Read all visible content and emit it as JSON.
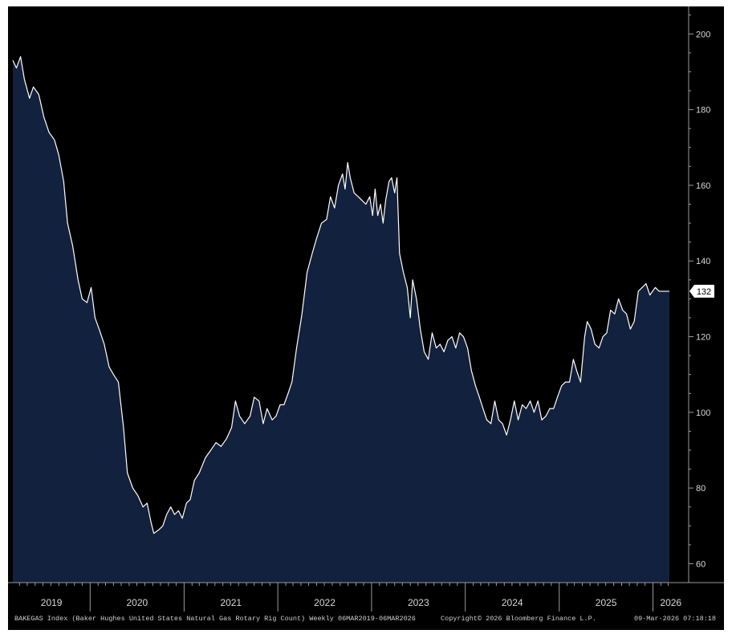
{
  "chart_data": {
    "type": "area",
    "x_range": [
      "2019-03-06",
      "2026-03-06"
    ],
    "ylim": [
      55,
      206
    ],
    "yticks": [
      60,
      80,
      100,
      120,
      140,
      160,
      180,
      200
    ],
    "year_labels": [
      "2019",
      "2020",
      "2021",
      "2022",
      "2023",
      "2024",
      "2025",
      "2026"
    ],
    "last_value": "132",
    "colors": {
      "fill": "#12213d",
      "line": "#ffffff",
      "background": "#000000",
      "last_tag": "#ffffff"
    },
    "series": [
      {
        "points": [
          [
            "2019-03-06",
            193
          ],
          [
            "2019-03-20",
            191
          ],
          [
            "2019-04-05",
            194
          ],
          [
            "2019-04-20",
            188
          ],
          [
            "2019-05-10",
            183
          ],
          [
            "2019-05-25",
            186
          ],
          [
            "2019-06-15",
            184
          ],
          [
            "2019-07-05",
            178
          ],
          [
            "2019-07-25",
            174
          ],
          [
            "2019-08-15",
            172
          ],
          [
            "2019-09-01",
            168
          ],
          [
            "2019-09-20",
            161
          ],
          [
            "2019-10-05",
            150
          ],
          [
            "2019-10-25",
            144
          ],
          [
            "2019-11-15",
            135
          ],
          [
            "2019-12-01",
            130
          ],
          [
            "2019-12-20",
            129
          ],
          [
            "2020-01-05",
            133
          ],
          [
            "2020-01-20",
            125
          ],
          [
            "2020-02-05",
            122
          ],
          [
            "2020-02-25",
            118
          ],
          [
            "2020-03-15",
            112
          ],
          [
            "2020-04-01",
            110
          ],
          [
            "2020-04-20",
            108
          ],
          [
            "2020-05-10",
            96
          ],
          [
            "2020-05-25",
            84
          ],
          [
            "2020-06-15",
            80
          ],
          [
            "2020-07-05",
            78
          ],
          [
            "2020-07-25",
            75
          ],
          [
            "2020-08-10",
            76
          ],
          [
            "2020-08-25",
            71
          ],
          [
            "2020-09-05",
            68
          ],
          [
            "2020-09-25",
            69
          ],
          [
            "2020-10-10",
            70
          ],
          [
            "2020-10-25",
            73
          ],
          [
            "2020-11-10",
            75
          ],
          [
            "2020-11-25",
            73
          ],
          [
            "2020-12-10",
            74
          ],
          [
            "2020-12-25",
            72
          ],
          [
            "2021-01-10",
            76
          ],
          [
            "2021-01-25",
            77
          ],
          [
            "2021-02-10",
            82
          ],
          [
            "2021-03-01",
            84
          ],
          [
            "2021-03-25",
            88
          ],
          [
            "2021-04-15",
            90
          ],
          [
            "2021-05-05",
            92
          ],
          [
            "2021-05-25",
            91
          ],
          [
            "2021-06-15",
            93
          ],
          [
            "2021-07-05",
            96
          ],
          [
            "2021-07-20",
            103
          ],
          [
            "2021-08-05",
            99
          ],
          [
            "2021-08-25",
            97
          ],
          [
            "2021-09-15",
            99
          ],
          [
            "2021-10-01",
            104
          ],
          [
            "2021-10-20",
            103
          ],
          [
            "2021-11-05",
            97
          ],
          [
            "2021-11-20",
            101
          ],
          [
            "2021-12-10",
            98
          ],
          [
            "2021-12-25",
            99
          ],
          [
            "2022-01-10",
            102
          ],
          [
            "2022-01-25",
            102
          ],
          [
            "2022-02-10",
            105
          ],
          [
            "2022-02-25",
            108
          ],
          [
            "2022-03-15",
            117
          ],
          [
            "2022-04-05",
            126
          ],
          [
            "2022-04-25",
            137
          ],
          [
            "2022-05-15",
            142
          ],
          [
            "2022-06-01",
            146
          ],
          [
            "2022-06-20",
            150
          ],
          [
            "2022-07-10",
            151
          ],
          [
            "2022-07-25",
            157
          ],
          [
            "2022-08-10",
            154
          ],
          [
            "2022-08-25",
            160
          ],
          [
            "2022-09-10",
            163
          ],
          [
            "2022-09-20",
            159
          ],
          [
            "2022-09-30",
            166
          ],
          [
            "2022-10-10",
            162
          ],
          [
            "2022-10-25",
            158
          ],
          [
            "2022-11-10",
            157
          ],
          [
            "2022-11-25",
            156
          ],
          [
            "2022-12-10",
            155
          ],
          [
            "2022-12-25",
            157
          ],
          [
            "2023-01-05",
            152
          ],
          [
            "2023-01-15",
            159
          ],
          [
            "2023-01-25",
            152
          ],
          [
            "2023-02-05",
            155
          ],
          [
            "2023-02-15",
            150
          ],
          [
            "2023-02-25",
            156
          ],
          [
            "2023-03-10",
            161
          ],
          [
            "2023-03-20",
            162
          ],
          [
            "2023-04-01",
            158
          ],
          [
            "2023-04-10",
            162
          ],
          [
            "2023-04-20",
            142
          ],
          [
            "2023-05-05",
            137
          ],
          [
            "2023-05-20",
            133
          ],
          [
            "2023-06-01",
            125
          ],
          [
            "2023-06-10",
            135
          ],
          [
            "2023-06-25",
            130
          ],
          [
            "2023-07-10",
            122
          ],
          [
            "2023-07-25",
            116
          ],
          [
            "2023-08-10",
            114
          ],
          [
            "2023-08-25",
            121
          ],
          [
            "2023-09-10",
            117
          ],
          [
            "2023-09-25",
            118
          ],
          [
            "2023-10-10",
            116
          ],
          [
            "2023-10-25",
            119
          ],
          [
            "2023-11-10",
            120
          ],
          [
            "2023-11-25",
            117
          ],
          [
            "2023-12-10",
            121
          ],
          [
            "2023-12-25",
            120
          ],
          [
            "2024-01-10",
            117
          ],
          [
            "2024-01-25",
            111
          ],
          [
            "2024-02-10",
            107
          ],
          [
            "2024-02-25",
            104
          ],
          [
            "2024-03-10",
            101
          ],
          [
            "2024-03-25",
            98
          ],
          [
            "2024-04-10",
            97
          ],
          [
            "2024-04-25",
            103
          ],
          [
            "2024-05-10",
            98
          ],
          [
            "2024-05-25",
            97
          ],
          [
            "2024-06-10",
            94
          ],
          [
            "2024-06-25",
            98
          ],
          [
            "2024-07-10",
            103
          ],
          [
            "2024-07-25",
            98
          ],
          [
            "2024-08-10",
            102
          ],
          [
            "2024-08-25",
            101
          ],
          [
            "2024-09-10",
            103
          ],
          [
            "2024-09-25",
            100
          ],
          [
            "2024-10-10",
            103
          ],
          [
            "2024-10-25",
            98
          ],
          [
            "2024-11-10",
            99
          ],
          [
            "2024-11-25",
            101
          ],
          [
            "2024-12-10",
            101
          ],
          [
            "2024-12-25",
            104
          ],
          [
            "2025-01-10",
            107
          ],
          [
            "2025-01-25",
            108
          ],
          [
            "2025-02-10",
            108
          ],
          [
            "2025-02-25",
            114
          ],
          [
            "2025-03-10",
            111
          ],
          [
            "2025-03-25",
            108
          ],
          [
            "2025-04-10",
            120
          ],
          [
            "2025-04-20",
            124
          ],
          [
            "2025-05-05",
            122
          ],
          [
            "2025-05-20",
            118
          ],
          [
            "2025-06-05",
            117
          ],
          [
            "2025-06-20",
            120
          ],
          [
            "2025-07-05",
            121
          ],
          [
            "2025-07-20",
            127
          ],
          [
            "2025-08-05",
            126
          ],
          [
            "2025-08-20",
            130
          ],
          [
            "2025-09-05",
            127
          ],
          [
            "2025-09-20",
            126
          ],
          [
            "2025-10-05",
            122
          ],
          [
            "2025-10-20",
            124
          ],
          [
            "2025-11-05",
            132
          ],
          [
            "2025-11-20",
            133
          ],
          [
            "2025-12-05",
            134
          ],
          [
            "2025-12-20",
            131
          ],
          [
            "2026-01-10",
            133
          ],
          [
            "2026-01-25",
            132
          ],
          [
            "2026-02-10",
            132
          ],
          [
            "2026-03-06",
            132
          ]
        ]
      }
    ]
  },
  "footer": {
    "left": "BAKEGAS Index (Baker Hughes United States Natural Gas Rotary Rig Count) Weekly 06MAR2019-06MAR2026",
    "center": "Copyright© 2026 Bloomberg Finance L.P.",
    "right": "09-Mar-2026 07:18:18"
  }
}
